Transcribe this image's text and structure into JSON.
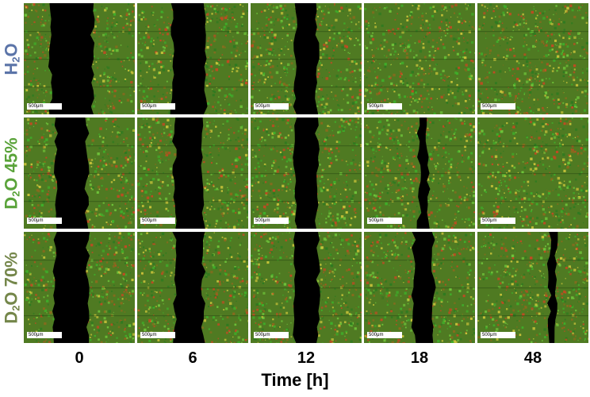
{
  "rows": [
    {
      "label": "H2O",
      "color": "#5b74a8"
    },
    {
      "label": "D2O 45%",
      "color": "#5aa33a"
    },
    {
      "label": "D2O 70%",
      "color": "#74864a"
    }
  ],
  "timepoints": [
    "0",
    "6",
    "12",
    "18",
    "48"
  ],
  "x_axis_title": "Time [h]",
  "scale_bar_label": "500μm",
  "colors": {
    "cells_green": "#3fae2a",
    "cells_red": "#c24a22",
    "cells_yellow": "#c8c23a",
    "gap": "#000000"
  },
  "gap_open_fraction": [
    [
      0.38,
      0.3,
      0.2,
      0.0,
      0.0
    ],
    [
      0.28,
      0.26,
      0.2,
      0.08,
      0.0
    ],
    [
      0.3,
      0.26,
      0.22,
      0.18,
      0.06
    ]
  ]
}
